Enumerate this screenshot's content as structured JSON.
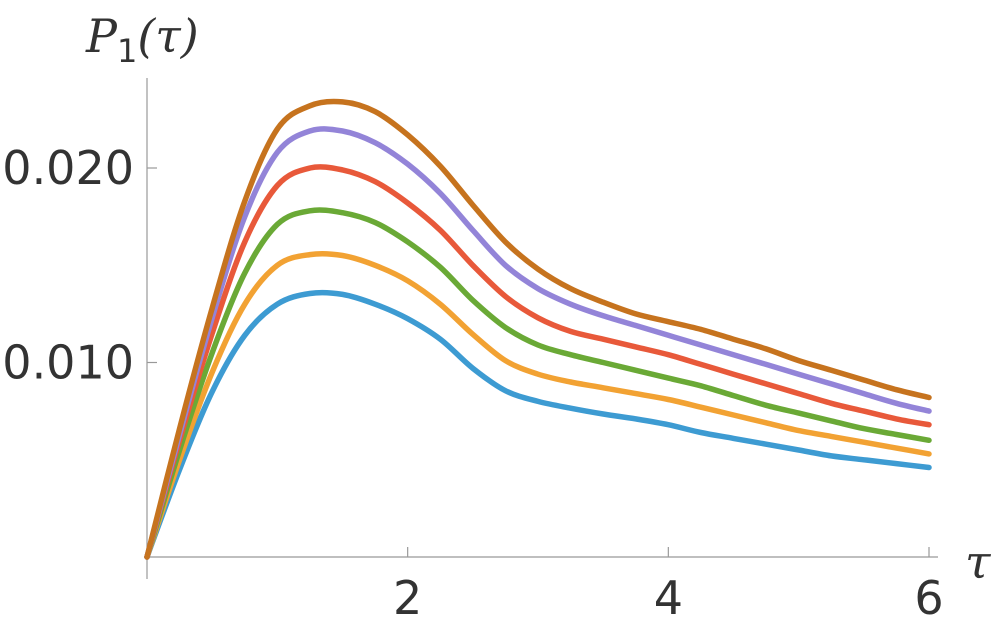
{
  "chart_data": {
    "type": "line",
    "xlabel": "τ",
    "ylabel_main": "P",
    "ylabel_sub": "1",
    "ylabel_suffix": "(τ)",
    "xlim": [
      0,
      6.05
    ],
    "ylim": [
      0,
      0.0245
    ],
    "x_ticks": [
      {
        "value": 2,
        "label": "2"
      },
      {
        "value": 4,
        "label": "4"
      },
      {
        "value": 6,
        "label": "6"
      }
    ],
    "y_ticks": [
      {
        "value": 0.01,
        "label": "0.010"
      },
      {
        "value": 0.02,
        "label": "0.020"
      }
    ],
    "x": [
      0,
      0.25,
      0.5,
      0.75,
      1.0,
      1.25,
      1.5,
      1.75,
      2.0,
      2.25,
      2.5,
      2.75,
      3.0,
      3.25,
      3.5,
      3.75,
      4.0,
      4.25,
      4.5,
      4.75,
      5.0,
      5.25,
      5.5,
      5.75,
      6.0
    ],
    "series": [
      {
        "color": "#3d9bd2",
        "values": [
          0,
          0.0045,
          0.0085,
          0.0114,
          0.013,
          0.01355,
          0.0135,
          0.013,
          0.01225,
          0.0112,
          0.0097,
          0.00855,
          0.008,
          0.00765,
          0.00735,
          0.0071,
          0.0068,
          0.0064,
          0.0061,
          0.0058,
          0.0055,
          0.0052,
          0.005,
          0.0048,
          0.0046
        ]
      },
      {
        "color": "#f2a233",
        "values": [
          0,
          0.005,
          0.0095,
          0.013,
          0.015,
          0.01555,
          0.0155,
          0.015,
          0.0142,
          0.013,
          0.01145,
          0.0101,
          0.0094,
          0.009,
          0.0087,
          0.0084,
          0.0081,
          0.0077,
          0.0073,
          0.0069,
          0.0065,
          0.0062,
          0.0059,
          0.0056,
          0.0053
        ]
      },
      {
        "color": "#6aa936",
        "values": [
          0,
          0.0055,
          0.0105,
          0.0146,
          0.0171,
          0.0178,
          0.0177,
          0.0172,
          0.0162,
          0.0149,
          0.0132,
          0.0118,
          0.0109,
          0.0104,
          0.01,
          0.0096,
          0.0092,
          0.0088,
          0.0083,
          0.0078,
          0.0074,
          0.007,
          0.0066,
          0.0063,
          0.006
        ]
      },
      {
        "color": "#e8593a",
        "values": [
          0,
          0.006,
          0.0115,
          0.0162,
          0.0191,
          0.02,
          0.0199,
          0.0193,
          0.0182,
          0.0168,
          0.015,
          0.0134,
          0.0123,
          0.0116,
          0.0112,
          0.0108,
          0.0104,
          0.0099,
          0.0094,
          0.0089,
          0.0084,
          0.0079,
          0.0075,
          0.0071,
          0.0068
        ]
      },
      {
        "color": "#9384d8",
        "values": [
          0,
          0.0063,
          0.0123,
          0.0175,
          0.0208,
          0.0219,
          0.0219,
          0.0213,
          0.0202,
          0.0187,
          0.0168,
          0.015,
          0.0138,
          0.013,
          0.0124,
          0.0119,
          0.0114,
          0.0109,
          0.0104,
          0.0099,
          0.0094,
          0.0089,
          0.0084,
          0.0079,
          0.0075
        ]
      },
      {
        "color": "#c6731e",
        "values": [
          0,
          0.0066,
          0.0128,
          0.0183,
          0.022,
          0.0232,
          0.0234,
          0.0229,
          0.0217,
          0.0201,
          0.0181,
          0.0162,
          0.0148,
          0.0138,
          0.0131,
          0.0125,
          0.0121,
          0.0117,
          0.0112,
          0.0107,
          0.0101,
          0.0096,
          0.0091,
          0.0086,
          0.0082
        ]
      }
    ]
  }
}
